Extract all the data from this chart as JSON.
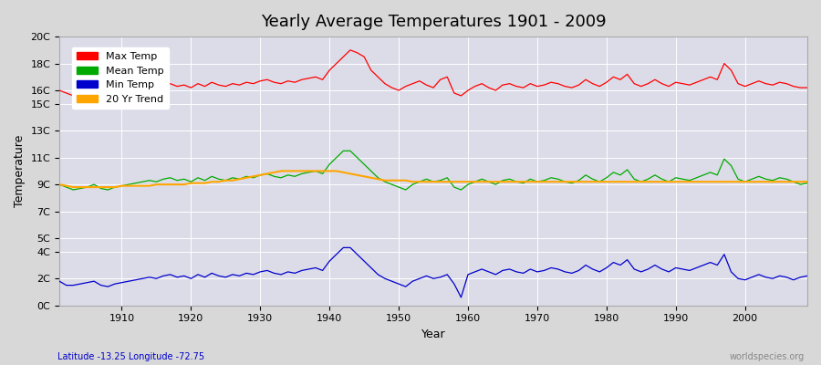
{
  "title": "Yearly Average Temperatures 1901 - 2009",
  "xlabel": "Year",
  "ylabel": "Temperature",
  "footnote_left": "Latitude -13.25 Longitude -72.75",
  "footnote_right": "worldspecies.org",
  "legend_entries": [
    "Max Temp",
    "Mean Temp",
    "Min Temp",
    "20 Yr Trend"
  ],
  "colors": {
    "max": "#ff0000",
    "mean": "#00aa00",
    "min": "#0000cc",
    "trend": "#ffa500"
  },
  "y_ticks": [
    0,
    2,
    4,
    5,
    7,
    9,
    11,
    13,
    15,
    16,
    18,
    20
  ],
  "y_tick_labels": [
    "0C",
    "2C",
    "4C",
    "5C",
    "7C",
    "9C",
    "11C",
    "13C",
    "15C",
    "16C",
    "18C",
    "20C"
  ],
  "ylim": [
    0,
    20
  ],
  "xlim": [
    1901,
    2009
  ],
  "x_ticks": [
    1910,
    1920,
    1930,
    1940,
    1950,
    1960,
    1970,
    1980,
    1990,
    2000
  ],
  "background_color": "#e8e8e8",
  "plot_bg_color": "#e0e0e8",
  "grid_color": "#ffffff",
  "years": [
    1901,
    1902,
    1903,
    1904,
    1905,
    1906,
    1907,
    1908,
    1909,
    1910,
    1911,
    1912,
    1913,
    1914,
    1915,
    1916,
    1917,
    1918,
    1919,
    1920,
    1921,
    1922,
    1923,
    1924,
    1925,
    1926,
    1927,
    1928,
    1929,
    1930,
    1931,
    1932,
    1933,
    1934,
    1935,
    1936,
    1937,
    1938,
    1939,
    1940,
    1941,
    1942,
    1943,
    1944,
    1945,
    1946,
    1947,
    1948,
    1949,
    1950,
    1951,
    1952,
    1953,
    1954,
    1955,
    1956,
    1957,
    1958,
    1959,
    1960,
    1961,
    1962,
    1963,
    1964,
    1965,
    1966,
    1967,
    1968,
    1969,
    1970,
    1971,
    1972,
    1973,
    1974,
    1975,
    1976,
    1977,
    1978,
    1979,
    1980,
    1981,
    1982,
    1983,
    1984,
    1985,
    1986,
    1987,
    1988,
    1989,
    1990,
    1991,
    1992,
    1993,
    1994,
    1995,
    1996,
    1997,
    1998,
    1999,
    2000,
    2001,
    2002,
    2003,
    2004,
    2005,
    2006,
    2007,
    2008,
    2009
  ],
  "max_temp": [
    16.0,
    15.8,
    15.6,
    15.7,
    15.9,
    16.1,
    15.5,
    15.4,
    15.6,
    15.8,
    15.9,
    16.0,
    16.1,
    16.3,
    16.2,
    16.4,
    16.5,
    16.3,
    16.4,
    16.2,
    16.5,
    16.3,
    16.6,
    16.4,
    16.3,
    16.5,
    16.4,
    16.6,
    16.5,
    16.7,
    16.8,
    16.6,
    16.5,
    16.7,
    16.6,
    16.8,
    16.9,
    17.0,
    16.8,
    17.5,
    18.0,
    18.5,
    19.0,
    18.8,
    18.5,
    17.5,
    17.0,
    16.5,
    16.2,
    16.0,
    16.3,
    16.5,
    16.7,
    16.4,
    16.2,
    16.8,
    17.0,
    15.8,
    15.6,
    16.0,
    16.3,
    16.5,
    16.2,
    16.0,
    16.4,
    16.5,
    16.3,
    16.2,
    16.5,
    16.3,
    16.4,
    16.6,
    16.5,
    16.3,
    16.2,
    16.4,
    16.8,
    16.5,
    16.3,
    16.6,
    17.0,
    16.8,
    17.2,
    16.5,
    16.3,
    16.5,
    16.8,
    16.5,
    16.3,
    16.6,
    16.5,
    16.4,
    16.6,
    16.8,
    17.0,
    16.8,
    18.0,
    17.5,
    16.5,
    16.3,
    16.5,
    16.7,
    16.5,
    16.4,
    16.6,
    16.5,
    16.3,
    16.2,
    16.2
  ],
  "mean_temp": [
    9.0,
    8.8,
    8.6,
    8.7,
    8.8,
    9.0,
    8.7,
    8.6,
    8.8,
    8.9,
    9.0,
    9.1,
    9.2,
    9.3,
    9.2,
    9.4,
    9.5,
    9.3,
    9.4,
    9.2,
    9.5,
    9.3,
    9.6,
    9.4,
    9.3,
    9.5,
    9.4,
    9.6,
    9.5,
    9.7,
    9.8,
    9.6,
    9.5,
    9.7,
    9.6,
    9.8,
    9.9,
    10.0,
    9.8,
    10.5,
    11.0,
    11.5,
    11.5,
    11.0,
    10.5,
    10.0,
    9.5,
    9.2,
    9.0,
    8.8,
    8.6,
    9.0,
    9.2,
    9.4,
    9.2,
    9.3,
    9.5,
    8.8,
    8.6,
    9.0,
    9.2,
    9.4,
    9.2,
    9.0,
    9.3,
    9.4,
    9.2,
    9.1,
    9.4,
    9.2,
    9.3,
    9.5,
    9.4,
    9.2,
    9.1,
    9.3,
    9.7,
    9.4,
    9.2,
    9.5,
    9.9,
    9.7,
    10.1,
    9.4,
    9.2,
    9.4,
    9.7,
    9.4,
    9.2,
    9.5,
    9.4,
    9.3,
    9.5,
    9.7,
    9.9,
    9.7,
    10.9,
    10.4,
    9.4,
    9.2,
    9.4,
    9.6,
    9.4,
    9.3,
    9.5,
    9.4,
    9.2,
    9.0,
    9.1
  ],
  "min_temp": [
    1.8,
    1.5,
    1.5,
    1.6,
    1.7,
    1.8,
    1.5,
    1.4,
    1.6,
    1.7,
    1.8,
    1.9,
    2.0,
    2.1,
    2.0,
    2.2,
    2.3,
    2.1,
    2.2,
    2.0,
    2.3,
    2.1,
    2.4,
    2.2,
    2.1,
    2.3,
    2.2,
    2.4,
    2.3,
    2.5,
    2.6,
    2.4,
    2.3,
    2.5,
    2.4,
    2.6,
    2.7,
    2.8,
    2.6,
    3.3,
    3.8,
    4.3,
    4.3,
    3.8,
    3.3,
    2.8,
    2.3,
    2.0,
    1.8,
    1.6,
    1.4,
    1.8,
    2.0,
    2.2,
    2.0,
    2.1,
    2.3,
    1.6,
    0.6,
    2.3,
    2.5,
    2.7,
    2.5,
    2.3,
    2.6,
    2.7,
    2.5,
    2.4,
    2.7,
    2.5,
    2.6,
    2.8,
    2.7,
    2.5,
    2.4,
    2.6,
    3.0,
    2.7,
    2.5,
    2.8,
    3.2,
    3.0,
    3.4,
    2.7,
    2.5,
    2.7,
    3.0,
    2.7,
    2.5,
    2.8,
    2.7,
    2.6,
    2.8,
    3.0,
    3.2,
    3.0,
    3.8,
    2.5,
    2.0,
    1.9,
    2.1,
    2.3,
    2.1,
    2.0,
    2.2,
    2.1,
    1.9,
    2.1,
    2.2
  ],
  "trend": [
    9.0,
    8.9,
    8.8,
    8.8,
    8.8,
    8.8,
    8.8,
    8.8,
    8.8,
    8.9,
    8.9,
    8.9,
    8.9,
    8.9,
    9.0,
    9.0,
    9.0,
    9.0,
    9.0,
    9.1,
    9.1,
    9.1,
    9.2,
    9.2,
    9.3,
    9.3,
    9.4,
    9.5,
    9.6,
    9.7,
    9.8,
    9.9,
    10.0,
    10.0,
    10.0,
    10.0,
    10.0,
    10.0,
    10.0,
    10.0,
    10.0,
    9.9,
    9.8,
    9.7,
    9.6,
    9.5,
    9.4,
    9.3,
    9.3,
    9.3,
    9.3,
    9.2,
    9.2,
    9.2,
    9.2,
    9.2,
    9.2,
    9.2,
    9.2,
    9.2,
    9.2,
    9.2,
    9.2,
    9.2,
    9.2,
    9.2,
    9.2,
    9.2,
    9.2,
    9.2,
    9.2,
    9.2,
    9.2,
    9.2,
    9.2,
    9.2,
    9.2,
    9.2,
    9.2,
    9.2,
    9.2,
    9.2,
    9.2,
    9.2,
    9.2,
    9.2,
    9.2,
    9.2,
    9.2,
    9.2,
    9.2,
    9.2,
    9.2,
    9.2,
    9.2,
    9.2,
    9.2,
    9.2,
    9.2,
    9.2,
    9.2,
    9.2,
    9.2,
    9.2,
    9.2,
    9.2,
    9.2,
    9.2,
    9.2
  ]
}
